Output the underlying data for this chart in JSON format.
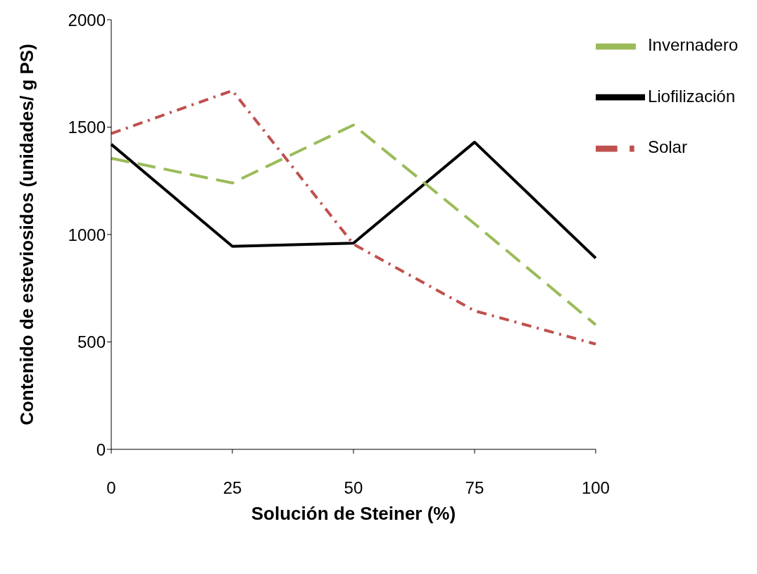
{
  "chart_data": {
    "type": "line",
    "xlabel": "Solución de Steiner (%)",
    "ylabel": "Contenido de esteviosidos (unidades/ g PS)",
    "categories": [
      "0",
      "25",
      "50",
      "75",
      "100"
    ],
    "ylim": [
      0,
      2000
    ],
    "yticks": [
      0,
      500,
      1000,
      1500,
      2000
    ],
    "grid": false,
    "legend": "top right",
    "marker": "none",
    "series": [
      {
        "name": "Liofilización",
        "color": "#000000",
        "line_style": "solid",
        "values": [
          1420,
          945,
          960,
          1430,
          890
        ]
      },
      {
        "name": "Solar",
        "color": "#c0504d",
        "line_style": "dashdot",
        "values": [
          1470,
          1670,
          955,
          645,
          490
        ]
      },
      {
        "name": "Invernadero",
        "color": "#9bbb59",
        "line_style": "dashed",
        "values": [
          1355,
          1240,
          1510,
          1050,
          580
        ]
      }
    ]
  }
}
